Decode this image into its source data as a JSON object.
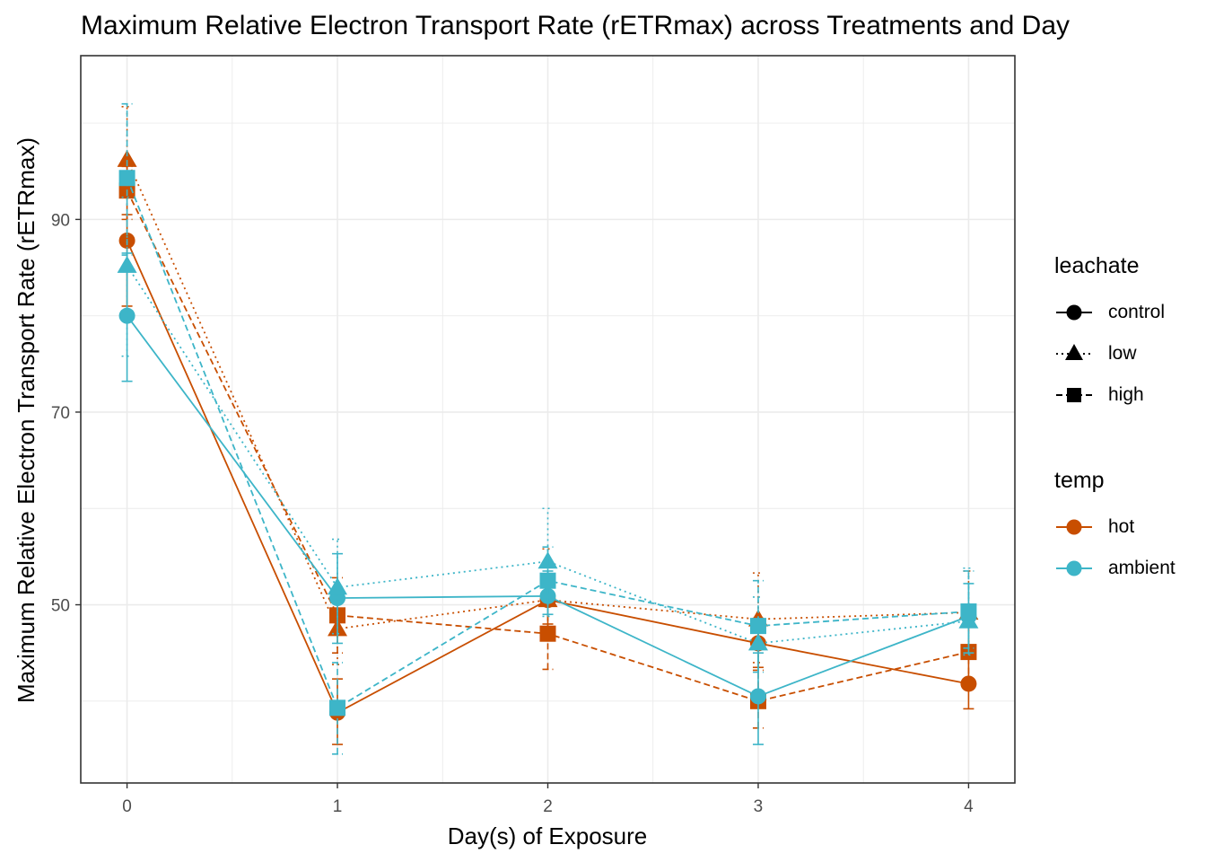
{
  "chart_data": {
    "type": "line",
    "title": "Maximum Relative Electron Transport Rate (rETRmax) across Treatments and Day",
    "xlabel": "Day(s) of Exposure",
    "ylabel": "Maximum Relative Electron Transport Rate (rETRmax)",
    "x": [
      0,
      1,
      2,
      3,
      4
    ],
    "x_ticks": [
      "0",
      "1",
      "2",
      "3",
      "4"
    ],
    "y_ticks": [
      50,
      70,
      90
    ],
    "xlim": [
      -0.22,
      4.22
    ],
    "ylim": [
      31.5,
      107
    ],
    "grid": true,
    "legend_position": "right",
    "colors": {
      "hot": "#C84E00",
      "ambient": "#3DB5C8"
    },
    "legends": [
      {
        "title": "leachate",
        "kind": "shape",
        "items": [
          {
            "label": "control",
            "shape": "circle",
            "dash": "solid"
          },
          {
            "label": "low",
            "shape": "triangle",
            "dash": "dotted"
          },
          {
            "label": "high",
            "shape": "square",
            "dash": "dashed"
          }
        ]
      },
      {
        "title": "temp",
        "kind": "color",
        "items": [
          {
            "label": "hot",
            "color": "#C84E00"
          },
          {
            "label": "ambient",
            "color": "#3DB5C8"
          }
        ]
      }
    ],
    "series": [
      {
        "temp": "hot",
        "leachate": "control",
        "color": "#C84E00",
        "shape": "circle",
        "dash": "solid",
        "values": [
          87.8,
          38.8,
          50.5,
          46.0,
          41.8
        ],
        "err_low": [
          81.0,
          35.5,
          48.0,
          43.5,
          39.2
        ],
        "err_high": [
          90.5,
          42.3,
          53.0,
          48.6,
          44.8
        ]
      },
      {
        "temp": "hot",
        "leachate": "low",
        "color": "#C84E00",
        "shape": "triangle",
        "dash": "dotted",
        "values": [
          96.2,
          47.5,
          50.5,
          48.5,
          49.2
        ],
        "err_low": [
          92.5,
          43.8,
          47.2,
          44.0,
          45.0
        ],
        "err_high": [
          101.7,
          51.2,
          55.8,
          53.3,
          53.5
        ]
      },
      {
        "temp": "hot",
        "leachate": "high",
        "color": "#C84E00",
        "shape": "square",
        "dash": "dashed",
        "values": [
          93.0,
          48.9,
          47.0,
          40.0,
          45.1
        ],
        "err_low": [
          90.0,
          45.0,
          43.3,
          37.2,
          41.8
        ],
        "err_high": [
          95.5,
          52.8,
          50.8,
          43.2,
          48.5
        ]
      },
      {
        "temp": "ambient",
        "leachate": "control",
        "color": "#3DB5C8",
        "shape": "circle",
        "dash": "solid",
        "values": [
          80.0,
          50.7,
          50.9,
          40.5,
          48.8
        ],
        "err_low": [
          73.2,
          46.0,
          49.0,
          35.5,
          45.0
        ],
        "err_high": [
          86.5,
          55.3,
          53.5,
          45.0,
          52.2
        ]
      },
      {
        "temp": "ambient",
        "leachate": "low",
        "color": "#3DB5C8",
        "shape": "triangle",
        "dash": "dotted",
        "values": [
          85.2,
          51.8,
          54.5,
          46.0,
          48.3
        ],
        "err_low": [
          75.8,
          47.0,
          48.8,
          40.8,
          44.8
        ],
        "err_high": [
          92.3,
          56.8,
          60.0,
          50.8,
          53.8
        ]
      },
      {
        "temp": "ambient",
        "leachate": "high",
        "color": "#3DB5C8",
        "shape": "square",
        "dash": "dashed",
        "values": [
          94.3,
          39.3,
          52.5,
          47.8,
          49.3
        ],
        "err_low": [
          86.3,
          34.5,
          49.0,
          43.0,
          45.5
        ],
        "err_high": [
          102.0,
          44.0,
          56.0,
          52.5,
          53.5
        ]
      }
    ]
  }
}
